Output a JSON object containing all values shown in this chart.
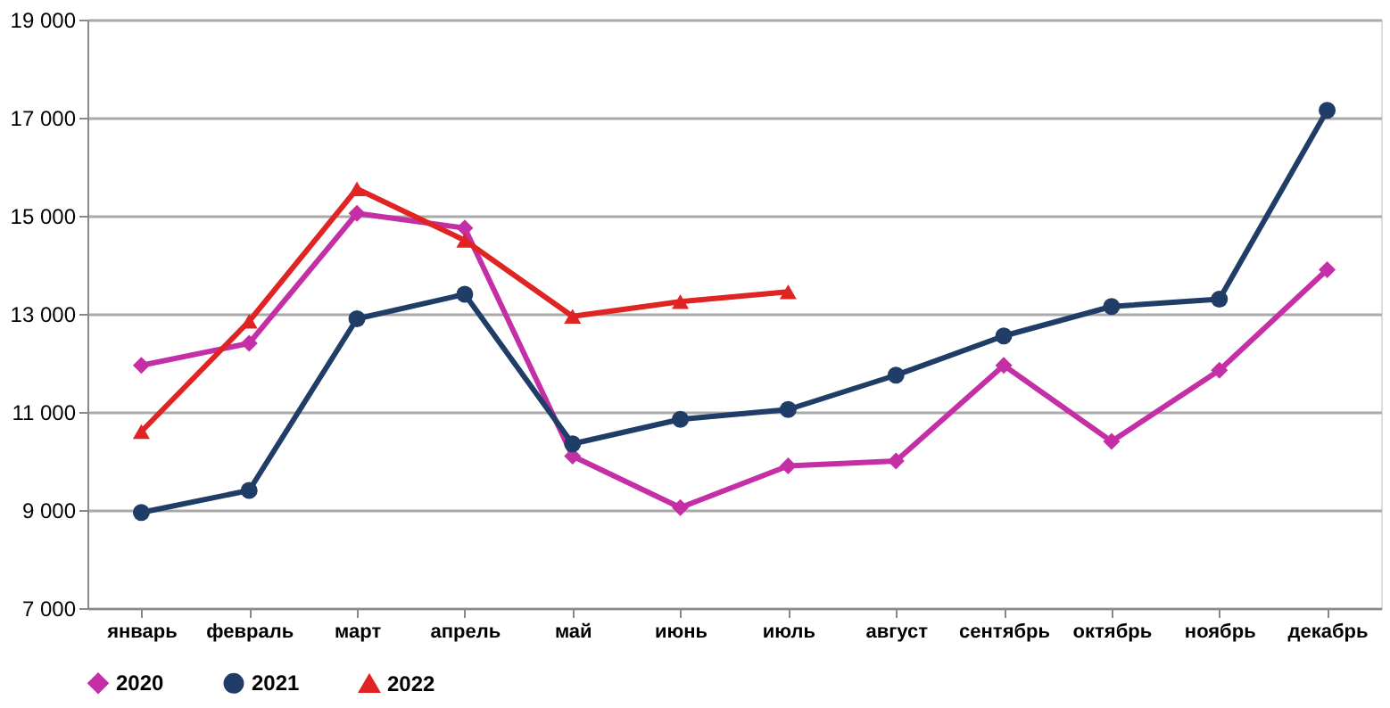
{
  "chart_data": {
    "type": "line",
    "categories": [
      "январь",
      "февраль",
      "март",
      "апрель",
      "май",
      "июнь",
      "июль",
      "август",
      "сентябрь",
      "октябрь",
      "ноябрь",
      "декабрь"
    ],
    "series": [
      {
        "name": "2020",
        "color": "#c42fa6",
        "marker": "diamond",
        "values": [
          11950,
          12400,
          15050,
          14750,
          10100,
          9050,
          9900,
          10000,
          11950,
          10400,
          11850,
          13900
        ]
      },
      {
        "name": "2021",
        "color": "#1f3d66",
        "marker": "circle",
        "values": [
          8950,
          9400,
          12900,
          13400,
          10350,
          10850,
          11050,
          11750,
          12550,
          13150,
          13300,
          17150
        ]
      },
      {
        "name": "2022",
        "color": "#e02424",
        "marker": "triangle",
        "values": [
          10600,
          12850,
          15550,
          14500,
          12950,
          13250,
          13450,
          null,
          null,
          null,
          null,
          null
        ]
      }
    ],
    "ylim": [
      7000,
      19000
    ],
    "yticks": [
      {
        "value": 7000,
        "label": "7 000"
      },
      {
        "value": 9000,
        "label": "9 000"
      },
      {
        "value": 11000,
        "label": "11 000"
      },
      {
        "value": 13000,
        "label": "13 000"
      },
      {
        "value": 15000,
        "label": "15 000"
      },
      {
        "value": 17000,
        "label": "17 000"
      },
      {
        "value": 19000,
        "label": "19 000"
      }
    ],
    "grid": "y",
    "legend": "bottom",
    "line_style": "solid"
  }
}
